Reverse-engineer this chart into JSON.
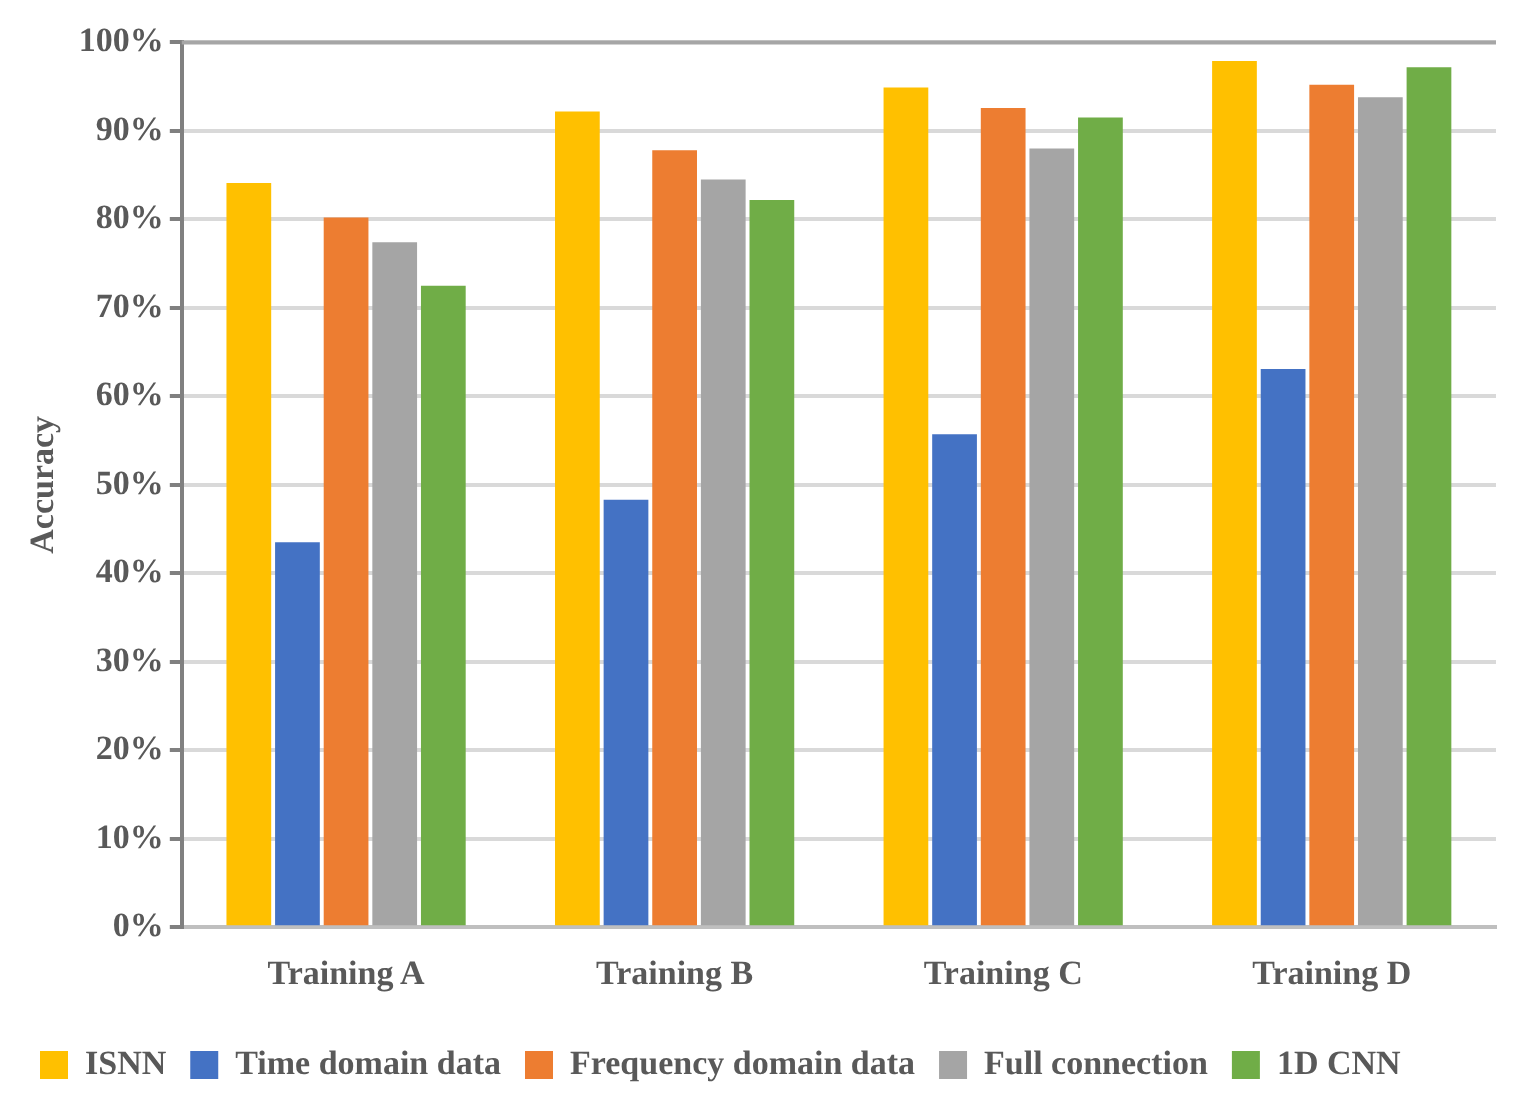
{
  "chart_data": {
    "type": "bar",
    "ylabel": "Accuracy",
    "categories": [
      "Training A",
      "Training B",
      "Training C",
      "Training D"
    ],
    "series": [
      {
        "name": "ISNN",
        "color": "#ffc000",
        "values": [
          84.1,
          92.2,
          94.9,
          97.9
        ]
      },
      {
        "name": "Time domain data",
        "color": "#4472c4",
        "values": [
          43.5,
          48.3,
          55.7,
          63.1
        ]
      },
      {
        "name": "Frequency domain data",
        "color": "#ed7d31",
        "values": [
          80.2,
          87.8,
          92.6,
          95.2
        ]
      },
      {
        "name": "Full connection",
        "color": "#a5a5a5",
        "values": [
          77.4,
          84.5,
          88.0,
          93.8
        ]
      },
      {
        "name": "1D CNN",
        "color": "#70ad47",
        "values": [
          72.5,
          82.2,
          91.5,
          97.2
        ]
      }
    ],
    "ylim": [
      0,
      100
    ],
    "yticks": [
      {
        "value": 0,
        "label": "0%"
      },
      {
        "value": 10,
        "label": "10%"
      },
      {
        "value": 20,
        "label": "20%"
      },
      {
        "value": 30,
        "label": "30%"
      },
      {
        "value": 40,
        "label": "40%"
      },
      {
        "value": 50,
        "label": "50%"
      },
      {
        "value": 60,
        "label": "60%"
      },
      {
        "value": 70,
        "label": "70%"
      },
      {
        "value": 80,
        "label": "80%"
      },
      {
        "value": 90,
        "label": "90%"
      },
      {
        "value": 100,
        "label": "100%"
      }
    ],
    "grid": "y",
    "legend": "bottom"
  }
}
